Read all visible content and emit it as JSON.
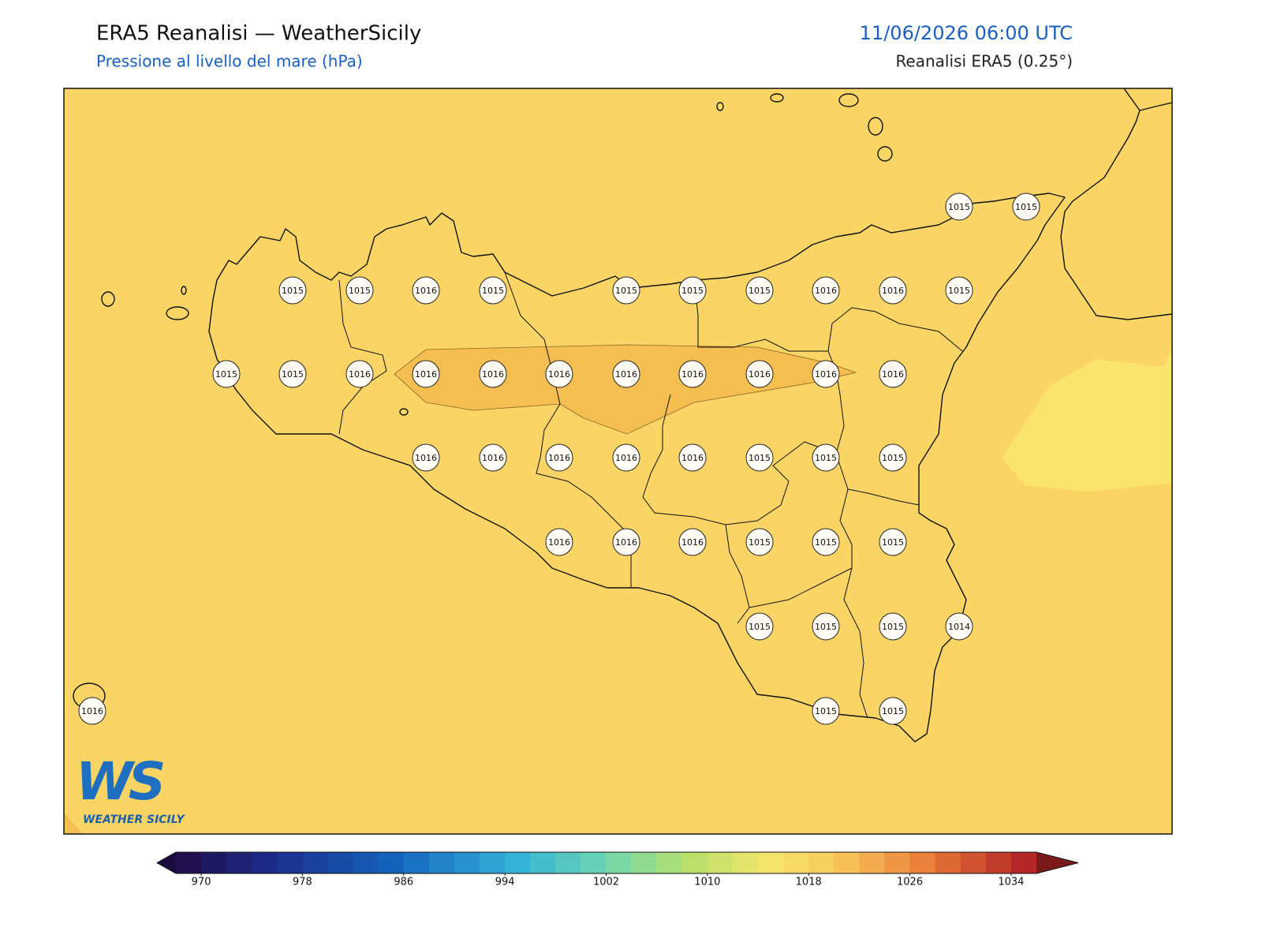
{
  "header": {
    "title": "ERA5 Reanalisi — WeatherSicily",
    "subtitle": "Pressione al livello del mare (hPa)",
    "datetime": "11/06/2026 06:00 UTC",
    "source": "Reanalisi ERA5 (0.25°)"
  },
  "map": {
    "stations": [
      1015,
      1015,
      1015,
      1015,
      1016,
      1015,
      1015,
      1015,
      1015,
      1016,
      1016,
      1015,
      1015,
      1015,
      1016,
      1016,
      1016,
      1016,
      1016,
      1016,
      1016,
      1016,
      1016,
      1016,
      1016,
      1016,
      1016,
      1016,
      1015,
      1015,
      1015,
      1016,
      1016,
      1016,
      1015,
      1015,
      1015,
      1015,
      1015,
      1015,
      1014,
      1016,
      1015,
      1015
    ]
  },
  "logo": {
    "mark": "WS",
    "text": "WEATHER SICILY"
  },
  "colorbar": {
    "lim": [
      968,
      1036
    ],
    "ticks": [
      970,
      978,
      986,
      994,
      1002,
      1010,
      1018,
      1026,
      1034
    ]
  }
}
